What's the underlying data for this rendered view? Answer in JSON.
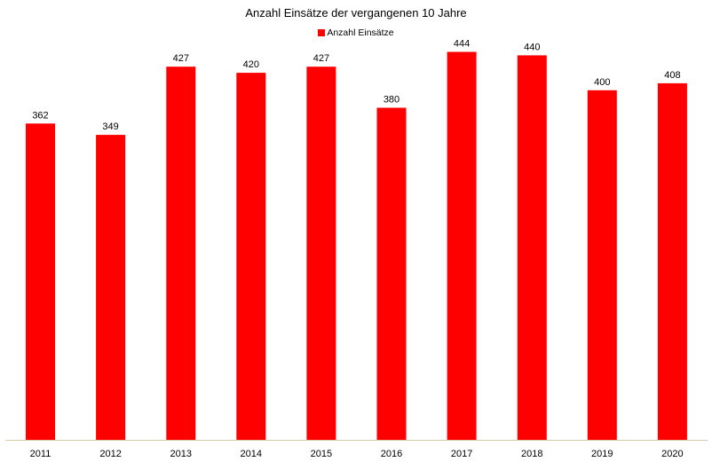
{
  "chart_data": {
    "type": "bar",
    "title": "Anzahl Einsätze der vergangenen 10 Jahre",
    "xlabel": "",
    "ylabel": "",
    "categories": [
      "2011",
      "2012",
      "2013",
      "2014",
      "2015",
      "2016",
      "2017",
      "2018",
      "2019",
      "2020"
    ],
    "series": [
      {
        "name": "Anzahl Einsätze",
        "values": [
          362,
          349,
          427,
          420,
          427,
          380,
          444,
          440,
          400,
          408
        ]
      }
    ],
    "ylim": [
      0,
      480
    ],
    "grid": false,
    "legend_position": "top",
    "data_labels": true
  },
  "colors": {
    "bar": "#ff0000",
    "axis": "#d4c9a8"
  }
}
